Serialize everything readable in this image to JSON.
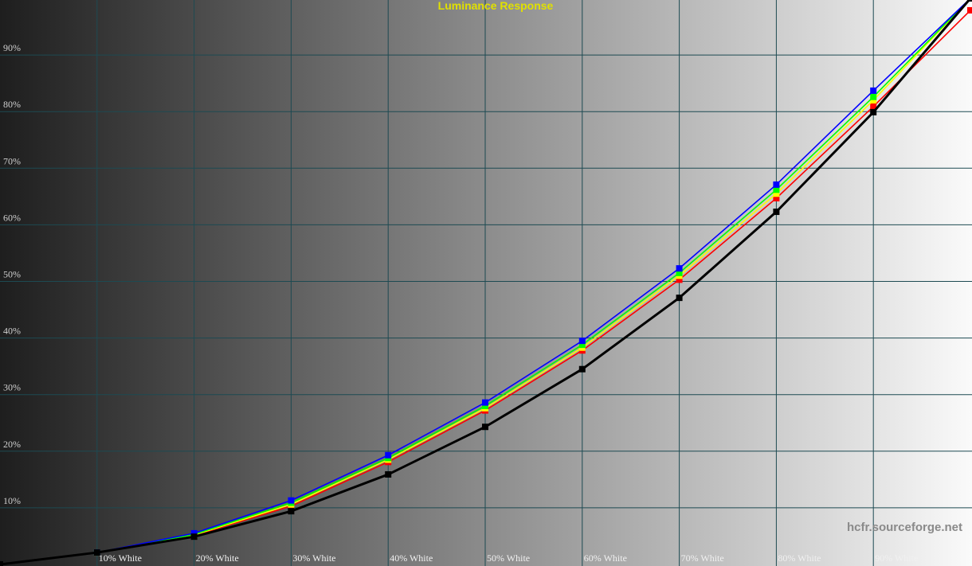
{
  "chart_data": {
    "type": "line",
    "title": "Luminance Response",
    "watermark": "hcfr.sourceforge.net",
    "x": [
      0,
      10,
      20,
      30,
      40,
      50,
      60,
      70,
      80,
      90,
      100
    ],
    "xlim": [
      0,
      100
    ],
    "ylim": [
      0,
      100
    ],
    "xticks": [
      {
        "value": 10,
        "label": "10% White"
      },
      {
        "value": 20,
        "label": "20% White"
      },
      {
        "value": 30,
        "label": "30% White"
      },
      {
        "value": 40,
        "label": "40% White"
      },
      {
        "value": 50,
        "label": "50% White"
      },
      {
        "value": 60,
        "label": "60% White"
      },
      {
        "value": 70,
        "label": "70% White"
      },
      {
        "value": 80,
        "label": "80% White"
      },
      {
        "value": 90,
        "label": "90% White"
      }
    ],
    "yticks": [
      {
        "value": 10,
        "label": "10%"
      },
      {
        "value": 20,
        "label": "20%"
      },
      {
        "value": 30,
        "label": "30%"
      },
      {
        "value": 40,
        "label": "40%"
      },
      {
        "value": 50,
        "label": "50%"
      },
      {
        "value": 60,
        "label": "60%"
      },
      {
        "value": 70,
        "label": "70%"
      },
      {
        "value": 80,
        "label": "80%"
      },
      {
        "value": 90,
        "label": "90%"
      }
    ],
    "grid": true,
    "series": [
      {
        "color": "#ff0000",
        "values": [
          0,
          2.1,
          5.1,
          10.3,
          18.1,
          27.2,
          37.8,
          50.3,
          64.7,
          80.9,
          97.9
        ]
      },
      {
        "color": "#ffff00",
        "values": [
          0,
          2.1,
          5.2,
          10.6,
          18.5,
          27.6,
          38.3,
          51.0,
          65.5,
          82.0,
          100
        ]
      },
      {
        "color": "#00ff00",
        "values": [
          0,
          2.1,
          5.3,
          10.9,
          18.8,
          28.0,
          38.8,
          51.5,
          66.2,
          82.6,
          100
        ]
      },
      {
        "color": "#0000ff",
        "values": [
          0,
          2.1,
          5.5,
          11.3,
          19.3,
          28.6,
          39.5,
          52.3,
          67.1,
          83.7,
          100
        ]
      },
      {
        "color": "#000000",
        "values": [
          0,
          2.1,
          4.9,
          9.4,
          15.9,
          24.3,
          34.5,
          47.1,
          62.3,
          79.9,
          100
        ]
      }
    ]
  }
}
